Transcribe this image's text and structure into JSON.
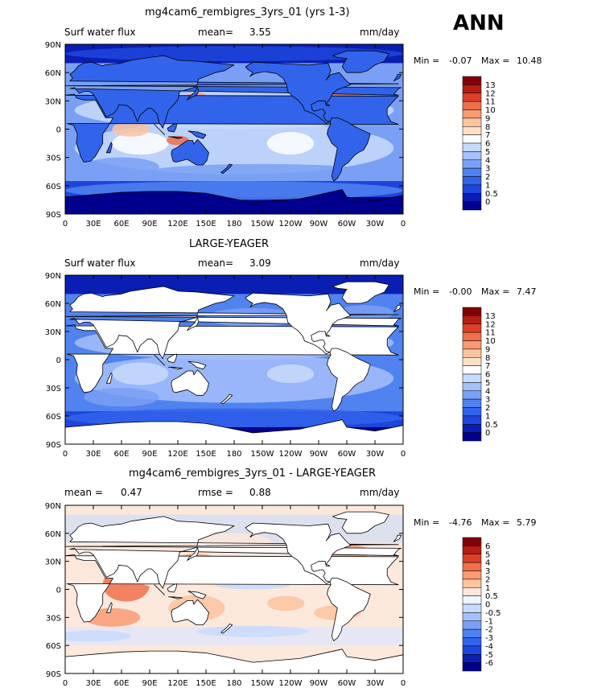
{
  "season": "ANN",
  "colors": {
    "blues": [
      "#00008c",
      "#0a23c8",
      "#1e46dc",
      "#2d5ae6",
      "#4678eb",
      "#6e96f0",
      "#96b4f5",
      "#bed2fa",
      "#e6edfc"
    ],
    "ocean_mid": "#6e96f0",
    "land_white": "#ffffff"
  },
  "panels": [
    {
      "title": "mg4cam6_rembigres_3yrs_01 (yrs 1-3)",
      "left_label": "Surf water flux",
      "stat_label": "mean=",
      "stat_value": "3.55",
      "right_label": "mm/day",
      "min_label": "Min =",
      "min_value": "-0.07",
      "max_label": "Max =",
      "max_value": "10.48",
      "colorbar_colors": [
        "#00008c",
        "#0a1eb4",
        "#1e46dc",
        "#3264eb",
        "#5082f0",
        "#7aa0f5",
        "#a5c0fa",
        "#c8dafc",
        "#ffffff",
        "#fde0c8",
        "#fcc3a0",
        "#fa9b73",
        "#f0704b",
        "#dc4128",
        "#b41e14",
        "#82000a"
      ],
      "colorbar_labels": [
        "13",
        "12",
        "11",
        "10",
        "9",
        "8",
        "7",
        "6",
        "5",
        "4",
        "3",
        "2",
        "1",
        "0.5",
        "0"
      ]
    },
    {
      "title": "LARGE-YEAGER",
      "left_label": "Surf water flux",
      "stat_label": "mean=",
      "stat_value": "3.09",
      "right_label": "mm/day",
      "min_label": "Min =",
      "min_value": "-0.00",
      "max_label": "Max =",
      "max_value": "7.47",
      "colorbar_colors": [
        "#00008c",
        "#0a1eb4",
        "#1e46dc",
        "#3264eb",
        "#5082f0",
        "#7aa0f5",
        "#a5c0fa",
        "#c8dafc",
        "#ffffff",
        "#fde0c8",
        "#fcc3a0",
        "#fa9b73",
        "#f0704b",
        "#dc4128",
        "#b41e14",
        "#82000a"
      ],
      "colorbar_labels": [
        "13",
        "12",
        "11",
        "10",
        "9",
        "8",
        "7",
        "6",
        "5",
        "4",
        "3",
        "2",
        "1",
        "0.5",
        "0"
      ]
    },
    {
      "title": "mg4cam6_rembigres_3yrs_01 - LARGE-YEAGER",
      "left_label": "mean =",
      "left_value": "0.47",
      "stat_label": "rmse =",
      "stat_value": "0.88",
      "right_label": "mm/day",
      "min_label": "Min =",
      "min_value": "-4.76",
      "max_label": "Max =",
      "max_value": "5.79",
      "colorbar_colors": [
        "#00008c",
        "#0a1eb4",
        "#1e46dc",
        "#3264eb",
        "#5082f0",
        "#7aa0f5",
        "#a5c0fa",
        "#c8dafc",
        "#f0f4ff",
        "#fde8dc",
        "#fcc3a0",
        "#fa9b73",
        "#f0704b",
        "#dc4128",
        "#b41e14",
        "#82000a"
      ],
      "colorbar_labels": [
        "6",
        "5",
        "4",
        "3",
        "2",
        "1",
        "0.5",
        "0",
        "-0.5",
        "-1",
        "-2",
        "-3",
        "-4",
        "-5",
        "-6"
      ]
    }
  ],
  "lat_ticks": [
    "90N",
    "60N",
    "30N",
    "0",
    "30S",
    "60S",
    "90S"
  ],
  "lon_ticks": [
    "0",
    "30E",
    "60E",
    "90E",
    "120E",
    "150E",
    "180",
    "150W",
    "120W",
    "90W",
    "60W",
    "30W",
    "0"
  ],
  "chart_data": [
    {
      "type": "heatmap",
      "title": "mg4cam6_rembigres_3yrs_01 (yrs 1-3)",
      "variable": "Surf water flux",
      "units": "mm/day",
      "mean": 3.55,
      "min": -0.07,
      "max": 10.48,
      "contour_levels": [
        0,
        0.5,
        1,
        2,
        3,
        4,
        5,
        6,
        7,
        8,
        9,
        10,
        11,
        12,
        13
      ],
      "lat_range": [
        -90,
        90
      ],
      "lon_range": [
        0,
        360
      ]
    },
    {
      "type": "heatmap",
      "title": "LARGE-YEAGER",
      "variable": "Surf water flux",
      "units": "mm/day",
      "mean": 3.09,
      "min": -0.0,
      "max": 7.47,
      "contour_levels": [
        0,
        0.5,
        1,
        2,
        3,
        4,
        5,
        6,
        7,
        8,
        9,
        10,
        11,
        12,
        13
      ],
      "lat_range": [
        -90,
        90
      ],
      "lon_range": [
        0,
        360
      ]
    },
    {
      "type": "heatmap",
      "title": "mg4cam6_rembigres_3yrs_01 - LARGE-YEAGER",
      "units": "mm/day",
      "mean": 0.47,
      "rmse": 0.88,
      "min": -4.76,
      "max": 5.79,
      "contour_levels": [
        -6,
        -5,
        -4,
        -3,
        -2,
        -1,
        -0.5,
        0,
        0.5,
        1,
        2,
        3,
        4,
        5,
        6
      ],
      "lat_range": [
        -90,
        90
      ],
      "lon_range": [
        0,
        360
      ]
    }
  ]
}
